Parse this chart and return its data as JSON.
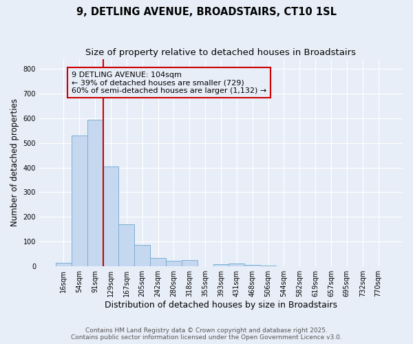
{
  "title": "9, DETLING AVENUE, BROADSTAIRS, CT10 1SL",
  "subtitle": "Size of property relative to detached houses in Broadstairs",
  "xlabel": "Distribution of detached houses by size in Broadstairs",
  "ylabel": "Number of detached properties",
  "bar_labels": [
    "16sqm",
    "54sqm",
    "91sqm",
    "129sqm",
    "167sqm",
    "205sqm",
    "242sqm",
    "280sqm",
    "318sqm",
    "355sqm",
    "393sqm",
    "431sqm",
    "468sqm",
    "506sqm",
    "544sqm",
    "582sqm",
    "619sqm",
    "657sqm",
    "695sqm",
    "732sqm",
    "770sqm"
  ],
  "bar_values": [
    14,
    530,
    595,
    405,
    170,
    88,
    35,
    22,
    27,
    0,
    8,
    13,
    5,
    3,
    0,
    0,
    0,
    0,
    0,
    0,
    0
  ],
  "bar_color": "#c5d8f0",
  "bar_edge_color": "#7aafd4",
  "vline_color": "#cc0000",
  "ylim": [
    0,
    840
  ],
  "yticks": [
    0,
    100,
    200,
    300,
    400,
    500,
    600,
    700,
    800
  ],
  "annotation_text": "9 DETLING AVENUE: 104sqm\n← 39% of detached houses are smaller (729)\n60% of semi-detached houses are larger (1,132) →",
  "annotation_box_color": "#cc0000",
  "footer_line1": "Contains HM Land Registry data © Crown copyright and database right 2025.",
  "footer_line2": "Contains public sector information licensed under the Open Government Licence v3.0.",
  "bg_color": "#e8eef8",
  "grid_color": "#ffffff",
  "title_fontsize": 10.5,
  "subtitle_fontsize": 9.5,
  "xlabel_fontsize": 9,
  "ylabel_fontsize": 8.5,
  "tick_fontsize": 7,
  "footer_fontsize": 6.5,
  "annotation_fontsize": 8
}
